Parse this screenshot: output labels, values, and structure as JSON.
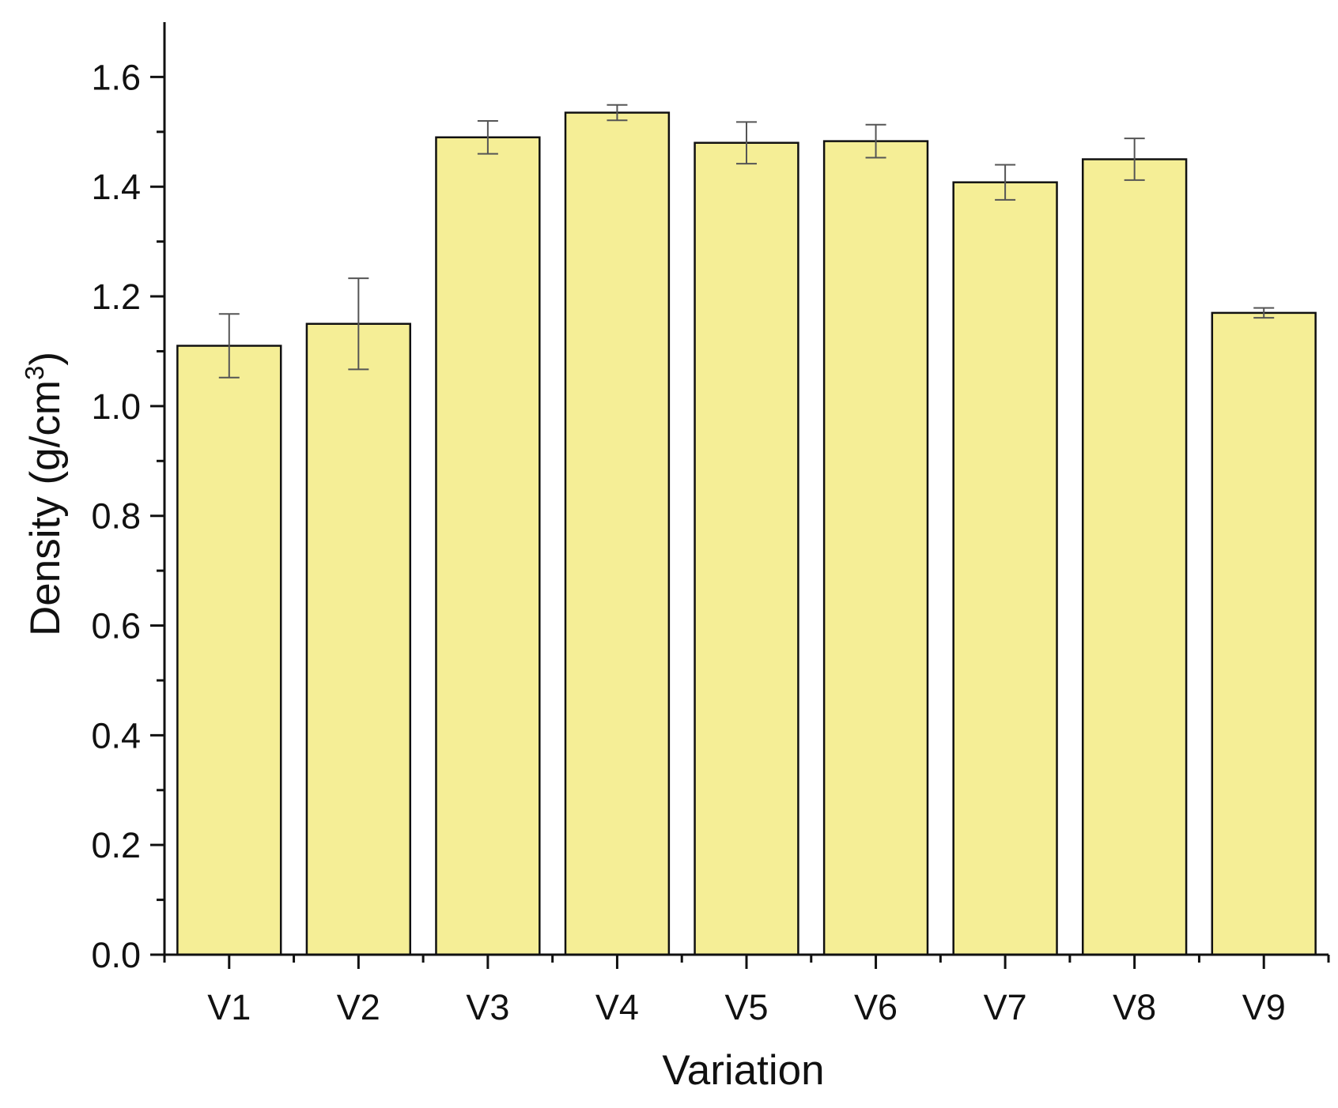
{
  "chart_data": {
    "type": "bar",
    "categories": [
      "V1",
      "V2",
      "V3",
      "V4",
      "V5",
      "V6",
      "V7",
      "V8",
      "V9"
    ],
    "values": [
      1.11,
      1.15,
      1.49,
      1.535,
      1.48,
      1.483,
      1.408,
      1.45,
      1.17
    ],
    "errors": [
      0.058,
      0.083,
      0.03,
      0.014,
      0.038,
      0.03,
      0.032,
      0.038,
      0.009
    ],
    "xlabel": "Variation",
    "ylabel_main": "Density (g/cm",
    "ylabel_sup": "3",
    "ylabel_close": ")",
    "ylim": [
      0,
      1.7
    ],
    "yticks": [
      0.0,
      0.2,
      0.4,
      0.6,
      0.8,
      1.0,
      1.2,
      1.4,
      1.6
    ],
    "ytick_labels": [
      "0.0",
      "0.2",
      "0.4",
      "0.6",
      "0.8",
      "1.0",
      "1.2",
      "1.4",
      "1.6"
    ],
    "grid": false,
    "colors": {
      "bar_fill": "#F5EE96",
      "bar_stroke": "#111111",
      "axis": "#111111",
      "error_bar": "#555555"
    }
  }
}
